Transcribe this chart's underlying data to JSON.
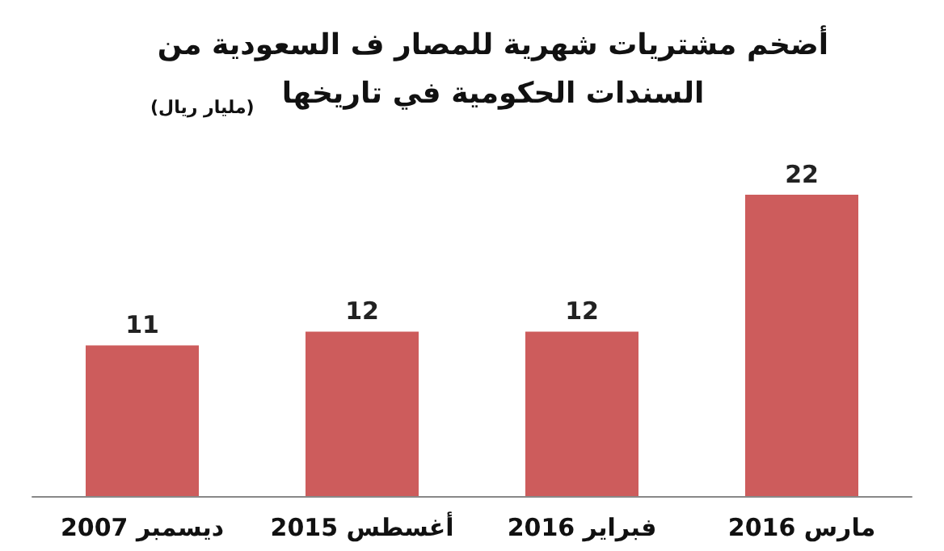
{
  "chart_data": {
    "type": "bar",
    "title": "أضخم مشتريات شهرية للمصار ف السعودية من\nالسندات الحكومية في تاريخها",
    "subtitle": "(مليار ريال)",
    "categories": [
      "ديسمبر 2007",
      "أغسطس 2015",
      "فبراير 2016",
      "مارس 2016"
    ],
    "values": [
      11,
      12,
      12,
      22
    ],
    "color": "#cd5c5c",
    "data_labels": true
  }
}
